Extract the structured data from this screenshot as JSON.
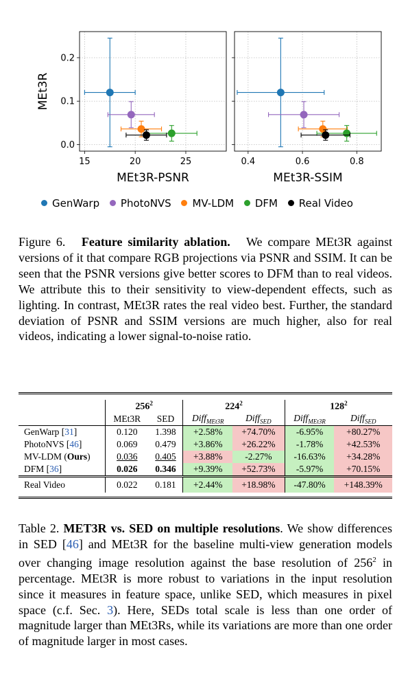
{
  "figure": {
    "chart_data": [
      {
        "type": "scatter",
        "xlabel": "MEt3R-PSNR",
        "ylabel": "MEt3R",
        "xlim": [
          14.5,
          29
        ],
        "ylim": [
          -0.015,
          0.26
        ],
        "xticks": [
          "15",
          "20",
          "25"
        ],
        "yticks": [
          "0.0",
          "0.1",
          "0.2"
        ],
        "grid": true,
        "series": [
          {
            "name": "GenWarp",
            "color": "#1f77b4",
            "x": 17.5,
            "y": 0.12,
            "xerr": 2.5,
            "yerr": 0.125
          },
          {
            "name": "PhotoNVS",
            "color": "#9467bd",
            "x": 19.6,
            "y": 0.069,
            "xerr": 2.3,
            "yerr": 0.03
          },
          {
            "name": "MV-LDM",
            "color": "#ff7f0e",
            "x": 20.6,
            "y": 0.036,
            "xerr": 2.0,
            "yerr": 0.018
          },
          {
            "name": "DFM",
            "color": "#2ca02c",
            "x": 23.6,
            "y": 0.026,
            "xerr": 2.5,
            "yerr": 0.018
          },
          {
            "name": "Real Video",
            "color": "#000000",
            "x": 21.1,
            "y": 0.022,
            "xerr": 2.0,
            "yerr": 0.012
          }
        ]
      },
      {
        "type": "scatter",
        "xlabel": "MEt3R-SSIM",
        "ylabel": "",
        "xlim": [
          0.35,
          0.89
        ],
        "ylim": [
          -0.015,
          0.26
        ],
        "xticks": [
          "0.4",
          "0.6",
          "0.8"
        ],
        "yticks": [],
        "grid": true,
        "series": [
          {
            "name": "GenWarp",
            "color": "#1f77b4",
            "x": 0.52,
            "y": 0.12,
            "xerr": 0.16,
            "yerr": 0.125
          },
          {
            "name": "PhotoNVS",
            "color": "#9467bd",
            "x": 0.605,
            "y": 0.069,
            "xerr": 0.13,
            "yerr": 0.03
          },
          {
            "name": "MV-LDM",
            "color": "#ff7f0e",
            "x": 0.675,
            "y": 0.036,
            "xerr": 0.09,
            "yerr": 0.018
          },
          {
            "name": "DFM",
            "color": "#2ca02c",
            "x": 0.763,
            "y": 0.026,
            "xerr": 0.11,
            "yerr": 0.018
          },
          {
            "name": "Real Video",
            "color": "#000000",
            "x": 0.685,
            "y": 0.022,
            "xerr": 0.09,
            "yerr": 0.012
          }
        ]
      }
    ],
    "legend": [
      {
        "label": "GenWarp",
        "color": "#1f77b4"
      },
      {
        "label": "PhotoNVS",
        "color": "#9467bd"
      },
      {
        "label": "MV-LDM",
        "color": "#ff7f0e"
      },
      {
        "label": "DFM",
        "color": "#2ca02c"
      },
      {
        "label": "Real Video",
        "color": "#000000"
      }
    ]
  },
  "figure_caption": {
    "number": "Figure 6.",
    "title": "Feature similarity ablation.",
    "text": "We compare MEt3R against versions of it that compare RGB projections via PSNR and SSIM. It can be seen that the PSNR versions give better scores to DFM than to real videos. We attribute this to their sensitivity to view-dependent effects, such as lighting. In contrast, MEt3R rates the real video best. Further, the standard deviation of PSNR and SSIM versions are much higher, also for real videos, indicating a lower signal-to-noise ratio."
  },
  "table": {
    "res_headers": [
      "256",
      "224",
      "128"
    ],
    "exponent": "2",
    "sub_met3r": "MEt3R",
    "sub_sed": "SED",
    "diff": "Diff",
    "diff_met3r_sub": "MEt3R",
    "diff_sed_sub": "SED",
    "rows": [
      {
        "name": "GenWarp",
        "cite": "31",
        "met3r": "0.120",
        "sed": "1.398",
        "d224_m": "+2.58%",
        "d224_s": "+74.70%",
        "d128_m": "-6.95%",
        "d128_s": "+80.27%"
      },
      {
        "name": "PhotoNVS",
        "cite": "46",
        "met3r": "0.069",
        "sed": "0.479",
        "d224_m": "+3.86%",
        "d224_s": "+26.22%",
        "d128_m": "-1.78%",
        "d128_s": "+42.53%"
      },
      {
        "name": "MV-LDM",
        "ours": "Ours",
        "met3r": "0.036",
        "sed": "0.405",
        "d224_m": "+3.88%",
        "d224_s": "-2.27%",
        "d128_m": "-16.63%",
        "d128_s": "+34.28%"
      },
      {
        "name": "DFM",
        "cite": "36",
        "met3r": "0.026",
        "sed": "0.346",
        "d224_m": "+9.39%",
        "d224_s": "+52.73%",
        "d128_m": "-5.97%",
        "d128_s": "+70.15%"
      }
    ],
    "real": {
      "name": "Real Video",
      "met3r": "0.022",
      "sed": "0.181",
      "d224_m": "+2.44%",
      "d224_s": "+18.98%",
      "d128_m": "-47.80%",
      "d128_s": "+148.39%"
    }
  },
  "table_caption": {
    "number": "Table 2.",
    "title": "MET3R vs. SED on multiple resolutions",
    "t1": ". We show differences in SED [",
    "c1": "46",
    "t2": "] and MEt3R for the baseline multi-view generation models over changing image resolution against the base resolution of 256",
    "sup": "2",
    "t3": " in percentage. MEt3R is more robust to variations in the input resolution since it measures in feature space, unlike SED, which measures in pixel space (c.f. Sec. ",
    "c2": "3",
    "t4": "). Here, SEDs total scale is less than one order of magnitude larger than MEt3Rs, while its variations are more than one order of magnitude larger in most cases."
  }
}
